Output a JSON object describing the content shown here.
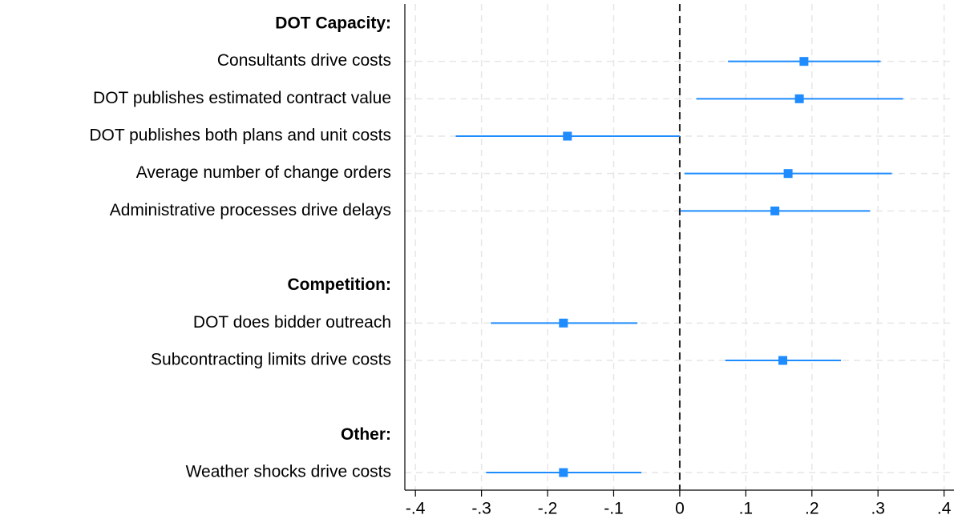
{
  "chart_data": {
    "type": "coefplot",
    "color": "#1e8cff",
    "xlim": [
      -0.416,
      0.415
    ],
    "xticks": [
      {
        "value": -0.4,
        "label": "-.4"
      },
      {
        "value": -0.3,
        "label": "-.3"
      },
      {
        "value": -0.2,
        "label": "-.2"
      },
      {
        "value": -0.1,
        "label": "-.1"
      },
      0,
      {
        "value": 0.1,
        "label": ".1"
      },
      {
        "value": 0.2,
        "label": ".2"
      },
      {
        "value": 0.3,
        "label": ".3"
      },
      {
        "value": 0.4,
        "label": ".4"
      }
    ],
    "xline": 0,
    "grid": true,
    "groups": [
      {
        "title": "DOT Capacity:",
        "categories": [
          "Consultants drive costs",
          "DOT publishes estimated contract value",
          "DOT publishes both plans and unit costs",
          "Average number of change orders",
          "Administrative processes drive delays"
        ],
        "values": [
          0.188,
          0.181,
          -0.17,
          0.164,
          0.144
        ],
        "lower": [
          0.073,
          0.025,
          -0.339,
          0.007,
          0.001
        ],
        "upper": [
          0.304,
          0.338,
          0.0,
          0.321,
          0.288
        ]
      },
      {
        "title": "Competition:",
        "categories": [
          "DOT does bidder outreach",
          "Subcontracting limits drive costs"
        ],
        "values": [
          -0.176,
          0.156
        ],
        "lower": [
          -0.286,
          0.069
        ],
        "upper": [
          -0.064,
          0.244
        ]
      },
      {
        "title": "Other:",
        "categories": [
          "Weather shocks drive costs"
        ],
        "values": [
          -0.176
        ],
        "lower": [
          -0.293
        ],
        "upper": [
          -0.058
        ]
      }
    ]
  }
}
